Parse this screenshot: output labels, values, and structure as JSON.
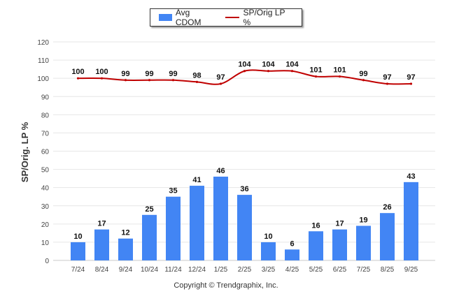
{
  "chart_data": {
    "type": "bar",
    "categories": [
      "7/24",
      "8/24",
      "9/24",
      "10/24",
      "11/24",
      "12/24",
      "1/25",
      "2/25",
      "3/25",
      "4/25",
      "5/25",
      "6/25",
      "7/25",
      "8/25",
      "9/25"
    ],
    "series": [
      {
        "name": "Avg CDOM",
        "kind": "bar",
        "color": "#4285f4",
        "values": [
          10,
          17,
          12,
          25,
          35,
          41,
          46,
          36,
          10,
          6,
          16,
          17,
          19,
          26,
          43
        ]
      },
      {
        "name": "SP/Orig LP %",
        "kind": "line",
        "color": "#c00000",
        "values": [
          100,
          100,
          99,
          99,
          99,
          98,
          97,
          104,
          104,
          104,
          101,
          101,
          99,
          97,
          97
        ]
      }
    ],
    "ylabel": "SP/Orig. LP %",
    "ylim": [
      0,
      120
    ],
    "yticks": [
      0,
      10,
      20,
      30,
      40,
      50,
      60,
      70,
      80,
      90,
      100,
      110,
      120
    ],
    "grid": true,
    "legend_position": "top-center"
  },
  "legend": {
    "bar_label": "Avg CDOM",
    "line_label": "SP/Orig LP %"
  },
  "footer": {
    "copyright": "Copyright © Trendgraphix, Inc."
  }
}
